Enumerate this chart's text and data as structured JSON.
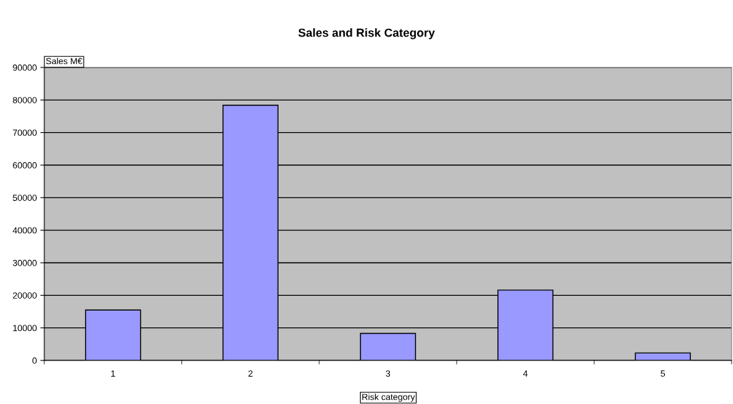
{
  "chart_data": {
    "type": "bar",
    "title": "Sales and Risk Category",
    "xlabel": "Risk category",
    "ylabel": "Sales M€",
    "categories": [
      "1",
      "2",
      "3",
      "4",
      "5"
    ],
    "values": [
      15500,
      78400,
      8300,
      21600,
      2300
    ],
    "color": "#9999ff",
    "ylim": [
      0,
      90000
    ],
    "yticks": [
      0,
      10000,
      20000,
      30000,
      40000,
      50000,
      60000,
      70000,
      80000,
      90000
    ],
    "grid": "y",
    "legend": false
  }
}
